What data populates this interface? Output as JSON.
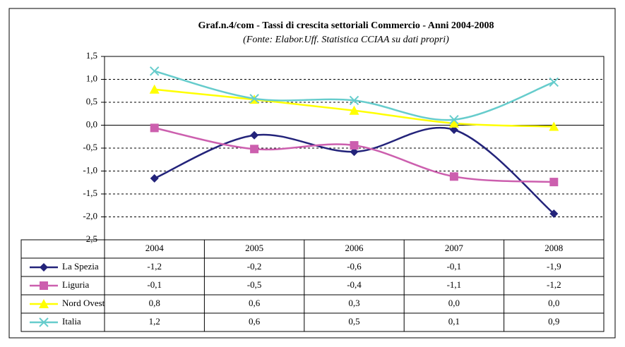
{
  "chart_data": {
    "type": "line",
    "title": "Graf.n.4/com - Tassi di crescita settoriali Commercio -  Anni 2004-2008",
    "subtitle": "(Fonte: Elabor.Uff. Statistica CCIAA su dati propri)",
    "categories": [
      "2004",
      "2005",
      "2006",
      "2007",
      "2008"
    ],
    "series": [
      {
        "name": "La Spezia",
        "color": "#23237a",
        "marker": "diamond",
        "values": [
          -1.16,
          -0.22,
          -0.58,
          -0.1,
          -1.93
        ],
        "value_labels": [
          "-1,2",
          "-0,2",
          "-0,6",
          "-0,1",
          "-1,9"
        ]
      },
      {
        "name": "Liguria",
        "color": "#cc5fae",
        "marker": "square",
        "values": [
          -0.06,
          -0.52,
          -0.44,
          -1.12,
          -1.24
        ],
        "value_labels": [
          "-0,1",
          "-0,5",
          "-0,4",
          "-1,1",
          "-1,2"
        ]
      },
      {
        "name": "Nord Ovest",
        "color": "#ffff00",
        "marker": "triangle",
        "values": [
          0.78,
          0.56,
          0.32,
          0.04,
          -0.03
        ],
        "value_labels": [
          "0,8",
          "0,6",
          "0,3",
          "0,0",
          "0,0"
        ]
      },
      {
        "name": "Italia",
        "color": "#66cccc",
        "marker": "x",
        "values": [
          1.18,
          0.58,
          0.54,
          0.12,
          0.94
        ],
        "value_labels": [
          "1,2",
          "0,6",
          "0,5",
          "0,1",
          "0,9"
        ]
      }
    ],
    "ylim": [
      -2.5,
      1.5
    ],
    "yticks": [
      {
        "value": -2.5,
        "label": "-2,5"
      },
      {
        "value": -2,
        "label": "-2,0"
      },
      {
        "value": -1.5,
        "label": "-1,5"
      },
      {
        "value": -1,
        "label": "-1,0"
      },
      {
        "value": -0.5,
        "label": "-0,5"
      },
      {
        "value": 0,
        "label": "0,0"
      },
      {
        "value": 0.5,
        "label": "0,5"
      },
      {
        "value": 1,
        "label": "1,0"
      },
      {
        "value": 1.5,
        "label": "1,5"
      }
    ],
    "grid": true,
    "smooth": true
  }
}
